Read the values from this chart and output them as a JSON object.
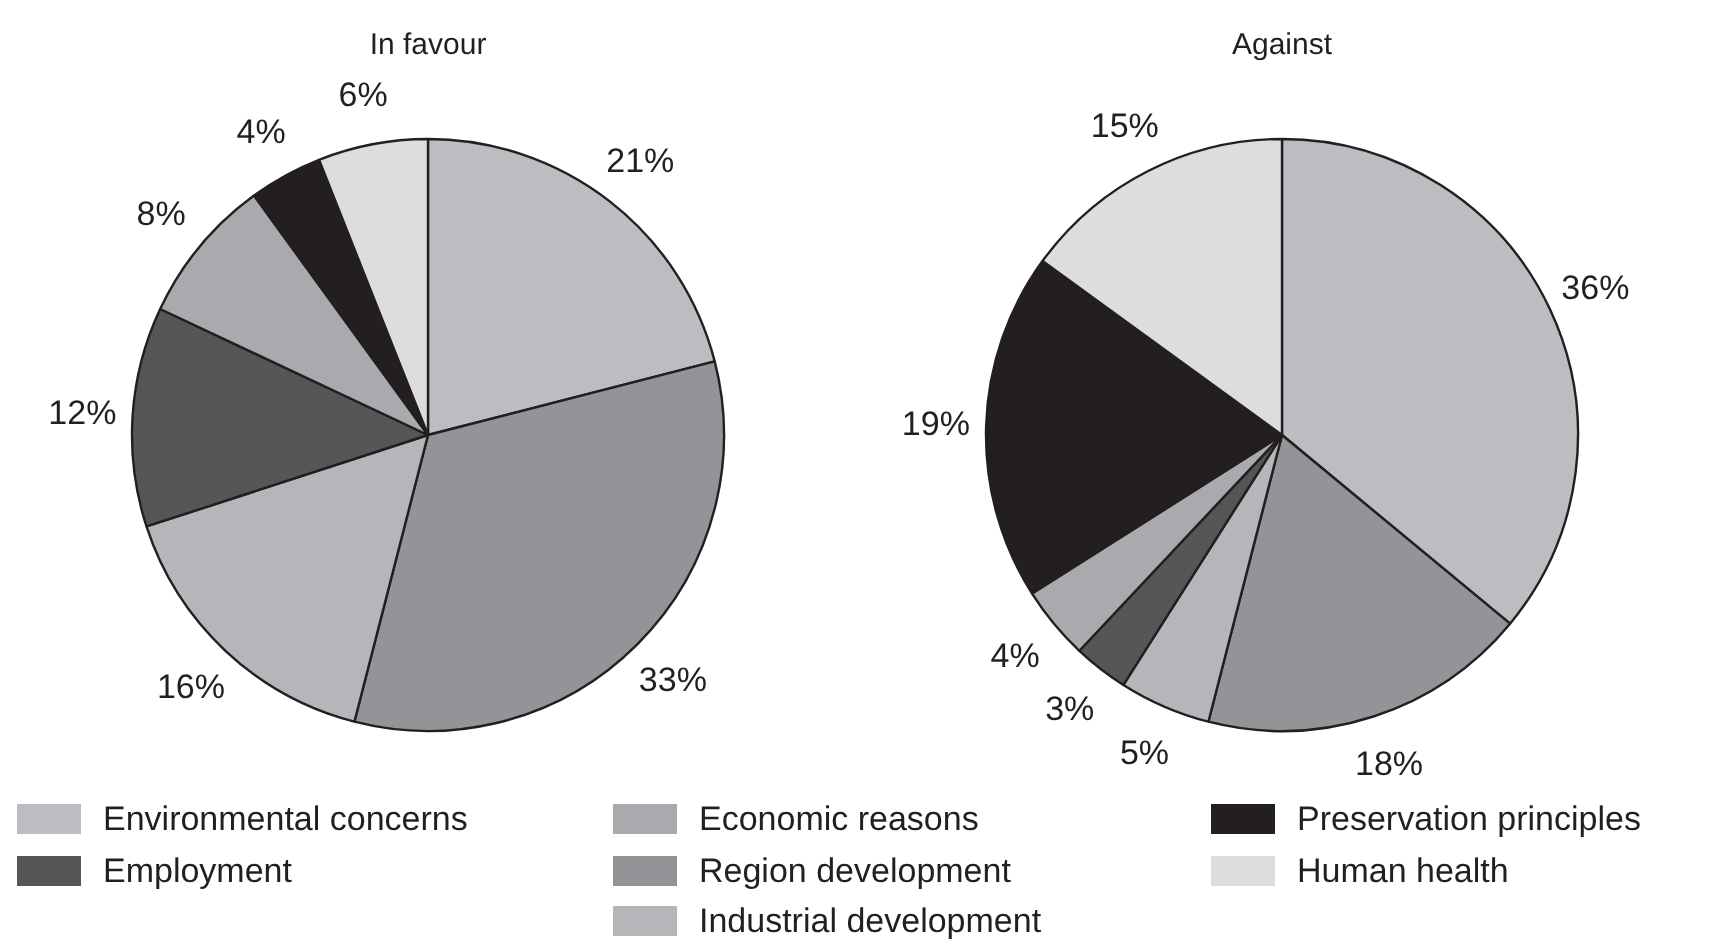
{
  "chart_data": [
    {
      "type": "pie",
      "title": "In favour",
      "categories": [
        "Environmental concerns",
        "Region development",
        "Industrial development",
        "Employment",
        "Economic reasons",
        "Preservation principles",
        "Human health"
      ],
      "values": [
        21,
        33,
        16,
        12,
        8,
        4,
        6
      ],
      "value_labels": [
        "21%",
        "33%",
        "16%",
        "12%",
        "8%",
        "4%",
        "6%"
      ],
      "colors": [
        "#bcbdc0",
        "#939497",
        "#b5b6b9",
        "#555658",
        "#a9aaad",
        "#231f20",
        "#dcdddf"
      ],
      "legend": "bottom"
    },
    {
      "type": "pie",
      "title": "Against",
      "categories": [
        null,
        null,
        null,
        null,
        null,
        null,
        null
      ],
      "values": [
        36,
        18,
        5,
        3,
        4,
        19,
        15
      ],
      "value_labels": [
        "36%",
        "18%",
        "5%",
        "3%",
        "4%",
        "19%",
        "15%"
      ],
      "colors": [
        "#bcbdc0",
        "#939497",
        "#b5b6b9",
        "#555658",
        "#a9aaad",
        "#231f20",
        "#dcdddf"
      ]
    }
  ]
}
